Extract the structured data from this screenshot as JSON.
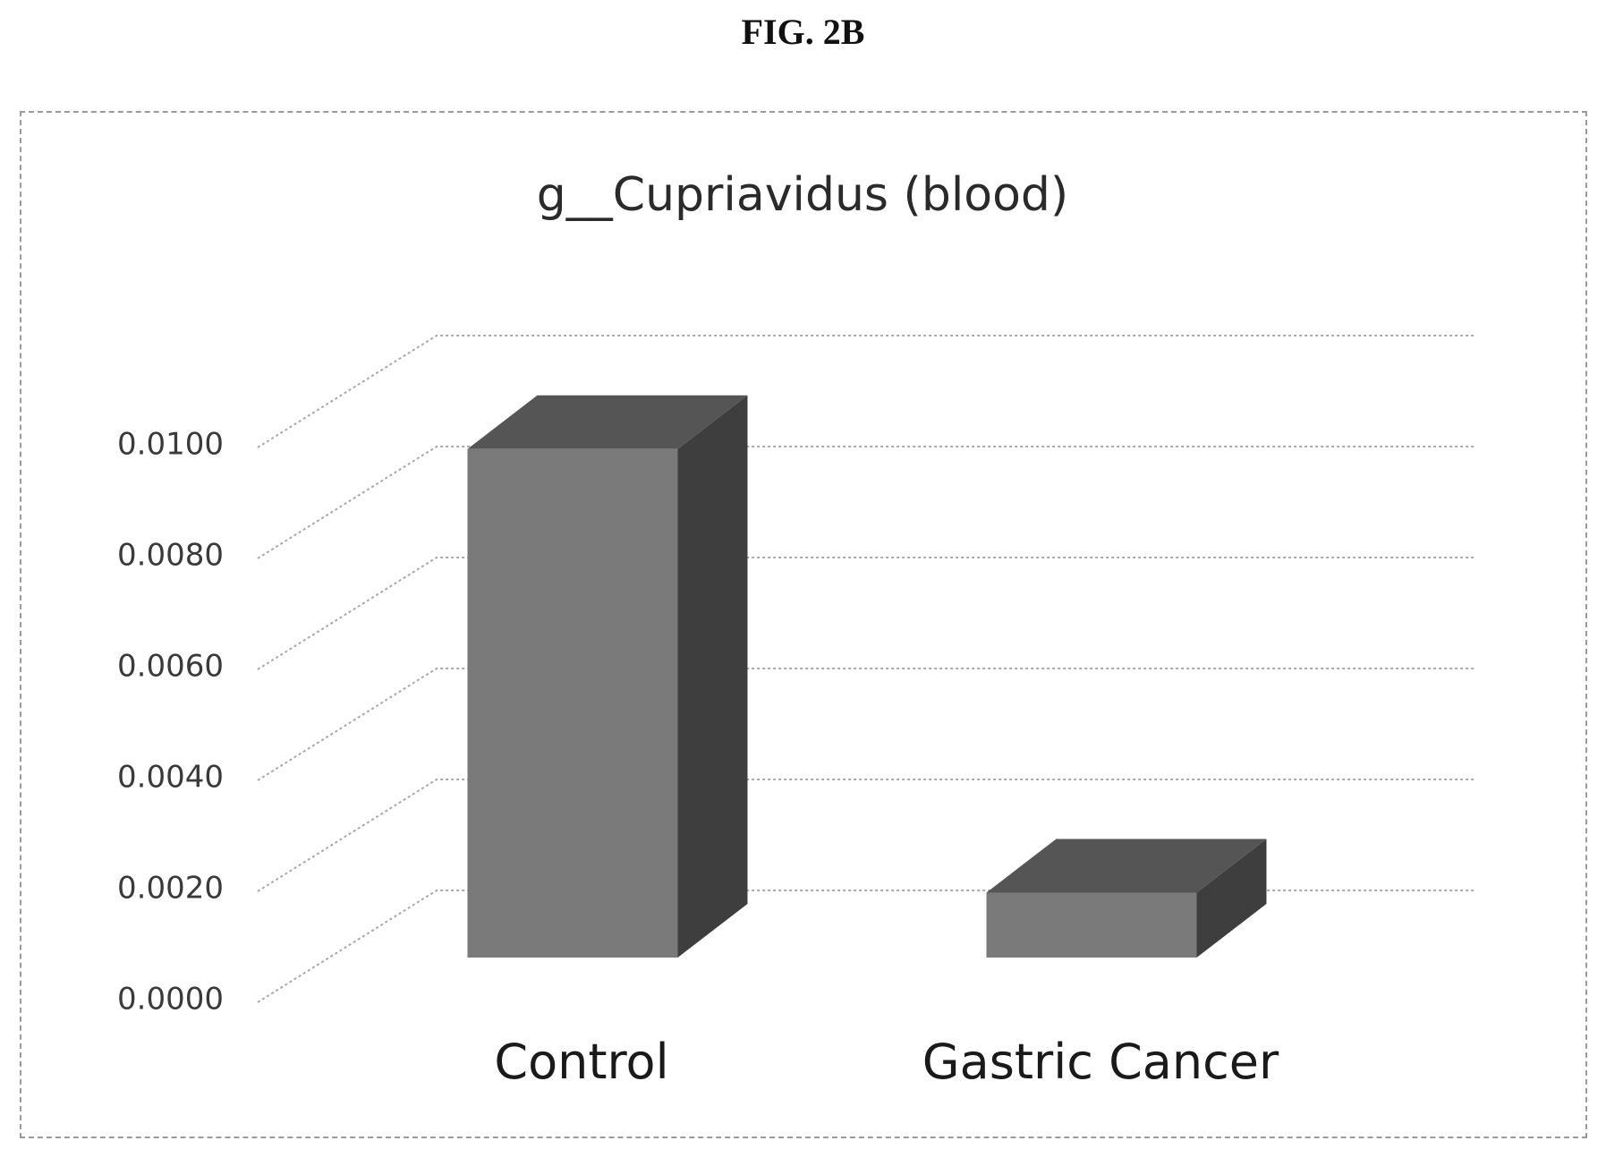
{
  "figure_label": "FIG. 2B",
  "chart_data": {
    "type": "bar",
    "title": "g__Cupriavidus (blood)",
    "categories": [
      "Control",
      "Gastric Cancer"
    ],
    "values": [
      0.0094,
      0.0012
    ],
    "ylim": [
      0,
      0.012
    ],
    "yticks": [
      "0.0000",
      "0.0020",
      "0.0040",
      "0.0060",
      "0.0080",
      "0.0100"
    ],
    "grid": true,
    "three_d": true,
    "colors": {
      "bar_front": "#7a7a7a",
      "bar_side": "#3e3e3e",
      "bar_top": "#555555",
      "grid": "#a8a8a8"
    }
  }
}
